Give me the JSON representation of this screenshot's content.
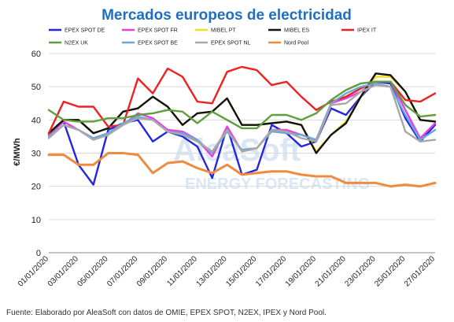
{
  "chart_data": {
    "type": "line",
    "title": "Mercados europeos de electricidad",
    "ylabel": "€/MWh",
    "xlabel": "",
    "ylim": [
      0,
      60
    ],
    "yticks": [
      0,
      10,
      20,
      30,
      40,
      50,
      60
    ],
    "grid": "horizontal",
    "legend_position": "top",
    "x": [
      "01/01/2020",
      "02/01/2020",
      "03/01/2020",
      "04/01/2020",
      "05/01/2020",
      "06/01/2020",
      "07/01/2020",
      "08/01/2020",
      "09/01/2020",
      "10/01/2020",
      "11/01/2020",
      "12/01/2020",
      "13/01/2020",
      "14/01/2020",
      "15/01/2020",
      "16/01/2020",
      "17/01/2020",
      "18/01/2020",
      "19/01/2020",
      "20/01/2020",
      "21/01/2020",
      "22/01/2020",
      "23/01/2020",
      "24/01/2020",
      "25/01/2020",
      "26/01/2020",
      "27/01/2020"
    ],
    "xtick_labels": [
      "01/01/2020",
      "03/01/2020",
      "05/01/2020",
      "07/01/2020",
      "09/01/2020",
      "11/01/2020",
      "13/01/2020",
      "15/01/2020",
      "17/01/2020",
      "19/01/2020",
      "21/01/2020",
      "23/01/2020",
      "25/01/2020",
      "27/01/2020"
    ],
    "watermark": [
      "AleaSoft",
      "ENERGY FORECASTING"
    ],
    "series": [
      {
        "name": "EPEX SPOT DE",
        "color": "#2326e0",
        "values": [
          35.5,
          39.5,
          26.5,
          20.5,
          37,
          39,
          40,
          33.5,
          36.5,
          35,
          32,
          22.5,
          38,
          23.5,
          25,
          38.5,
          36,
          32,
          33.5,
          43.5,
          41.5,
          47,
          51.5,
          51,
          40.5,
          33.5,
          38.5
        ]
      },
      {
        "name": "EPEX SPOT FR",
        "color": "#e83fe0",
        "values": [
          35.5,
          39.5,
          37,
          34.5,
          36,
          38.5,
          42,
          40.5,
          37,
          36.5,
          34,
          29,
          38,
          30.5,
          31.5,
          37,
          37,
          35.5,
          34,
          45,
          46.5,
          48.5,
          51.5,
          51.5,
          43,
          34.5,
          39
        ]
      },
      {
        "name": "MIBEL PT",
        "color": "#f0e11c",
        "values": [
          36,
          40,
          40,
          36,
          37.5,
          42.5,
          43.5,
          47,
          44,
          38.5,
          42,
          42.5,
          46.5,
          38.5,
          38.5,
          39,
          39.5,
          38.5,
          30.5,
          35.5,
          39.5,
          47,
          53,
          53,
          48.5,
          40,
          39.5
        ]
      },
      {
        "name": "MIBEL ES",
        "color": "#111111",
        "values": [
          36,
          40,
          40,
          36,
          37.5,
          42.5,
          43.5,
          47,
          44,
          38.5,
          42,
          42.5,
          46.5,
          38.5,
          38.5,
          39,
          39.5,
          38.5,
          30,
          35.5,
          39,
          47,
          54,
          53.5,
          48.5,
          40,
          39.5
        ]
      },
      {
        "name": "IPEX IT",
        "color": "#ee2020",
        "values": [
          36,
          45.5,
          44,
          44,
          38,
          38.5,
          52.5,
          48,
          55.5,
          53,
          45.5,
          45,
          54.5,
          56,
          55,
          50.5,
          51.5,
          47,
          43,
          45.5,
          47,
          49.5,
          51.5,
          51.5,
          46,
          45.5,
          48
        ]
      },
      {
        "name": "N2EX UK",
        "color": "#5e9e3c",
        "values": [
          43,
          40,
          39.5,
          39.5,
          40.5,
          40.5,
          41.5,
          42,
          43,
          42.5,
          39,
          42.5,
          40,
          37.5,
          37.5,
          41.5,
          41.5,
          40,
          42,
          46,
          49,
          51,
          51.5,
          51.5,
          44.5,
          41,
          41.5
        ]
      },
      {
        "name": "EPEX SPOT BE",
        "color": "#68a9d9",
        "values": [
          35,
          38.5,
          37,
          34.5,
          36,
          39,
          41,
          40,
          36.5,
          36,
          34,
          30,
          36.5,
          31,
          31.5,
          36.5,
          36,
          35.5,
          34,
          45,
          48,
          50,
          51,
          50,
          41.5,
          34,
          37
        ]
      },
      {
        "name": "EPEX SPOT NL",
        "color": "#a8a8a8",
        "values": [
          34.5,
          38.5,
          37,
          34,
          35.5,
          38.5,
          40.5,
          40,
          36.5,
          35.5,
          33.5,
          30.5,
          37,
          30.5,
          31.5,
          37,
          36.5,
          34.5,
          33.5,
          44.5,
          45,
          48.5,
          50.5,
          50,
          36.5,
          33.5,
          34
        ]
      },
      {
        "name": "Nord Pool",
        "color": "#ef8a3f",
        "values": [
          29.5,
          29.5,
          26.5,
          26.5,
          30,
          30,
          29.5,
          24,
          27,
          27.5,
          25.5,
          24,
          26.5,
          23.5,
          24,
          24.5,
          24.5,
          23.5,
          23,
          23,
          21,
          21,
          21,
          20,
          20.5,
          20,
          21
        ]
      }
    ]
  },
  "footer": {
    "source": "Fuente: Elaborado por AleaSoft con datos de OMIE, EPEX SPOT, N2EX, IPEX y Nord Pool."
  }
}
